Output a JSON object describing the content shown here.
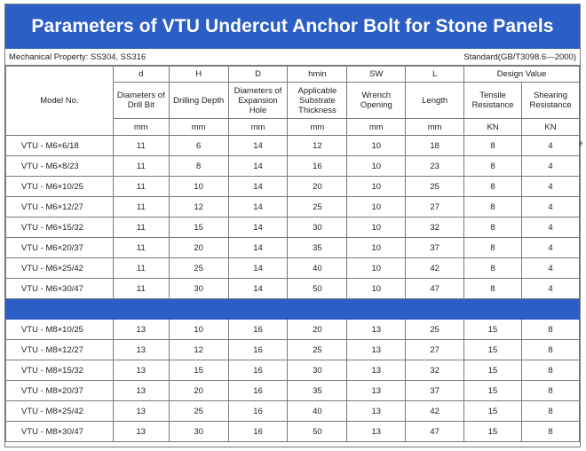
{
  "title": "Parameters of VTU Undercut Anchor Bolt for Stone Panels",
  "mechanical_property": "Mechanical Property: SS304, SS316",
  "standard": "Standard(GB/T3098.6—2000)",
  "model_header": "Model No.",
  "columns": [
    {
      "symbol": "d",
      "name": "Diameters of Drill Bit",
      "unit": "mm"
    },
    {
      "symbol": "H",
      "name": "Drilling Depth",
      "unit": "mm"
    },
    {
      "symbol": "D",
      "name": "Diameters of Expansion Hole",
      "unit": "mm"
    },
    {
      "symbol": "hmin",
      "name": "Applicable Substrate Thickness",
      "unit": "mm"
    },
    {
      "symbol": "SW",
      "name": "Wrench Opening",
      "unit": "mm"
    },
    {
      "symbol": "L",
      "name": "Length",
      "unit": "mm"
    },
    {
      "symbol": "",
      "name": "Tensile Resistance",
      "unit": "KN"
    },
    {
      "symbol": "",
      "name": "Shearing Resistance",
      "unit": "KN"
    }
  ],
  "design_value_label": "Design Value",
  "corner_mark": "e",
  "m6_rows": [
    {
      "model": "VTU  - M6×6/18",
      "d": "11",
      "H": "6",
      "D": "14",
      "hmin": "12",
      "SW": "10",
      "L": "18",
      "tensile": "8",
      "shear": "4"
    },
    {
      "model": "VTU  - M6×8/23",
      "d": "11",
      "H": "8",
      "D": "14",
      "hmin": "16",
      "SW": "10",
      "L": "23",
      "tensile": "8",
      "shear": "4"
    },
    {
      "model": "VTU  - M6×10/25",
      "d": "11",
      "H": "10",
      "D": "14",
      "hmin": "20",
      "SW": "10",
      "L": "25",
      "tensile": "8",
      "shear": "4"
    },
    {
      "model": "VTU  - M6×12/27",
      "d": "11",
      "H": "12",
      "D": "14",
      "hmin": "25",
      "SW": "10",
      "L": "27",
      "tensile": "8",
      "shear": "4"
    },
    {
      "model": "VTU  - M6×15/32",
      "d": "11",
      "H": "15",
      "D": "14",
      "hmin": "30",
      "SW": "10",
      "L": "32",
      "tensile": "8",
      "shear": "4"
    },
    {
      "model": "VTU  - M6×20/37",
      "d": "11",
      "H": "20",
      "D": "14",
      "hmin": "35",
      "SW": "10",
      "L": "37",
      "tensile": "8",
      "shear": "4"
    },
    {
      "model": "VTU  - M6×25/42",
      "d": "11",
      "H": "25",
      "D": "14",
      "hmin": "40",
      "SW": "10",
      "L": "42",
      "tensile": "8",
      "shear": "4"
    },
    {
      "model": "VTU  - M6×30/47",
      "d": "11",
      "H": "30",
      "D": "14",
      "hmin": "50",
      "SW": "10",
      "L": "47",
      "tensile": "8",
      "shear": "4"
    }
  ],
  "m8_rows": [
    {
      "model": "VTU  - M8×10/25",
      "d": "13",
      "H": "10",
      "D": "16",
      "hmin": "20",
      "SW": "13",
      "L": "25",
      "tensile": "15",
      "shear": "8"
    },
    {
      "model": "VTU  - M8×12/27",
      "d": "13",
      "H": "12",
      "D": "16",
      "hmin": "25",
      "SW": "13",
      "L": "27",
      "tensile": "15",
      "shear": "8"
    },
    {
      "model": "VTU  - M8×15/32",
      "d": "13",
      "H": "15",
      "D": "16",
      "hmin": "30",
      "SW": "13",
      "L": "32",
      "tensile": "15",
      "shear": "8"
    },
    {
      "model": "VTU  - M8×20/37",
      "d": "13",
      "H": "20",
      "D": "16",
      "hmin": "35",
      "SW": "13",
      "L": "37",
      "tensile": "15",
      "shear": "8"
    },
    {
      "model": "VTU  - M8×25/42",
      "d": "13",
      "H": "25",
      "D": "16",
      "hmin": "40",
      "SW": "13",
      "L": "42",
      "tensile": "15",
      "shear": "8"
    },
    {
      "model": "VTU  - M8×30/47",
      "d": "13",
      "H": "30",
      "D": "16",
      "hmin": "50",
      "SW": "13",
      "L": "47",
      "tensile": "15",
      "shear": "8"
    }
  ],
  "colors": {
    "header_blue": "#2b5fc6",
    "border": "#7a7a7a"
  }
}
